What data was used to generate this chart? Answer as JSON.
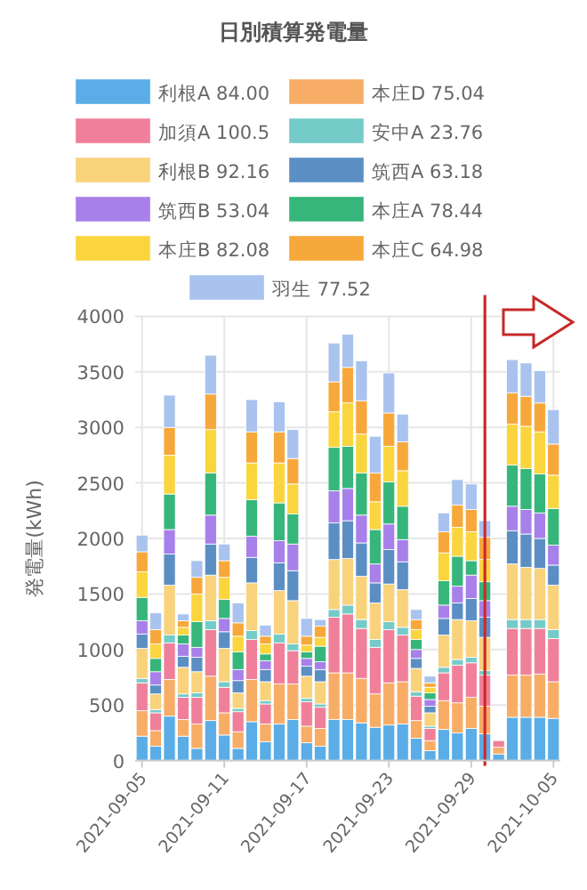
{
  "chart_data": {
    "type": "bar",
    "stacked": true,
    "title": "日別積算発電量",
    "ylabel": "発電量(kWh)",
    "x": [
      "2021-09-05",
      "2021-09-06",
      "2021-09-07",
      "2021-09-08",
      "2021-09-09",
      "2021-09-10",
      "2021-09-11",
      "2021-09-12",
      "2021-09-13",
      "2021-09-14",
      "2021-09-15",
      "2021-09-16",
      "2021-09-17",
      "2021-09-18",
      "2021-09-19",
      "2021-09-20",
      "2021-09-21",
      "2021-09-22",
      "2021-09-23",
      "2021-09-24",
      "2021-09-25",
      "2021-09-26",
      "2021-09-27",
      "2021-09-28",
      "2021-09-29",
      "2021-09-30",
      "2021-10-01",
      "2021-10-02",
      "2021-10-03",
      "2021-10-04",
      "2021-10-05"
    ],
    "xlim": [
      "2021-09-04T12:00",
      "2021-10-05T12:00"
    ],
    "xticks": [
      "2021-09-05",
      "2021-09-11",
      "2021-09-17",
      "2021-09-23",
      "2021-09-29",
      "2021-10-05"
    ],
    "ylim": [
      0,
      4000
    ],
    "yticks": [
      0,
      500,
      1000,
      1500,
      2000,
      2500,
      3000,
      3500,
      4000
    ],
    "grid": true,
    "legend": "top",
    "ref_lines": [
      {
        "axis": "x",
        "value": "2021-09-30",
        "color": "#cc2a2a"
      }
    ],
    "series": [
      {
        "name": "利根A 84.00",
        "color": "#5aade6",
        "values": [
          220,
          130,
          400,
          220,
          110,
          360,
          230,
          110,
          350,
          170,
          330,
          370,
          160,
          130,
          370,
          370,
          340,
          300,
          320,
          330,
          200,
          90,
          280,
          250,
          290,
          240,
          60,
          390,
          390,
          390,
          380
        ]
      },
      {
        "name": "本庄D 75.04",
        "color": "#f8ad66",
        "values": [
          230,
          140,
          330,
          150,
          220,
          400,
          200,
          150,
          380,
          160,
          360,
          320,
          150,
          160,
          420,
          420,
          400,
          300,
          380,
          380,
          160,
          90,
          260,
          270,
          280,
          250,
          60,
          380,
          380,
          390,
          330
        ]
      },
      {
        "name": "加須A 100.5",
        "color": "#f0809a",
        "values": [
          250,
          160,
          330,
          200,
          240,
          420,
          230,
          180,
          360,
          180,
          370,
          300,
          220,
          190,
          500,
          530,
          450,
          420,
          480,
          420,
          220,
          110,
          250,
          340,
          310,
          280,
          60,
          420,
          420,
          410,
          390
        ]
      },
      {
        "name": "安中A 23.76",
        "color": "#74cbc8",
        "values": [
          40,
          30,
          70,
          30,
          40,
          80,
          50,
          30,
          80,
          30,
          80,
          60,
          30,
          30,
          70,
          80,
          80,
          70,
          70,
          70,
          40,
          20,
          50,
          50,
          50,
          40,
          null,
          80,
          80,
          80,
          80
        ]
      },
      {
        "name": "利根B 92.16",
        "color": "#f9d27c",
        "values": [
          270,
          140,
          450,
          240,
          190,
          410,
          300,
          140,
          430,
          170,
          390,
          390,
          200,
          200,
          450,
          420,
          390,
          330,
          340,
          340,
          210,
          120,
          290,
          360,
          330,
          300,
          null,
          500,
          470,
          460,
          400
        ]
      },
      {
        "name": "筑西A 63.18",
        "color": "#5b8fc4",
        "values": [
          130,
          80,
          280,
          100,
          130,
          280,
          150,
          110,
          230,
          110,
          250,
          270,
          90,
          110,
          330,
          340,
          300,
          180,
          310,
          250,
          90,
          60,
          150,
          150,
          200,
          180,
          null,
          300,
          300,
          270,
          180
        ]
      },
      {
        "name": "筑西B 53.04",
        "color": "#a880ea",
        "values": [
          120,
          120,
          220,
          110,
          90,
          260,
          120,
          100,
          190,
          80,
          200,
          240,
          70,
          70,
          290,
          290,
          250,
          170,
          230,
          200,
          80,
          60,
          120,
          150,
          210,
          150,
          null,
          220,
          220,
          230,
          180
        ]
      },
      {
        "name": "本庄A 78.44",
        "color": "#36b67a",
        "values": [
          210,
          120,
          320,
          80,
          230,
          380,
          170,
          160,
          330,
          60,
          340,
          270,
          60,
          140,
          390,
          380,
          380,
          310,
          380,
          300,
          90,
          60,
          220,
          270,
          130,
          170,
          null,
          370,
          370,
          350,
          330
        ]
      },
      {
        "name": "本庄B 82.08",
        "color": "#fad53e",
        "values": [
          230,
          130,
          350,
          70,
          250,
          390,
          200,
          140,
          330,
          90,
          360,
          270,
          60,
          80,
          320,
          390,
          350,
          250,
          320,
          320,
          90,
          50,
          250,
          260,
          260,
          200,
          null,
          370,
          380,
          380,
          300
        ]
      },
      {
        "name": "本庄C 64.98",
        "color": "#f7a83a",
        "values": [
          180,
          130,
          250,
          60,
          150,
          320,
          150,
          120,
          280,
          70,
          280,
          230,
          80,
          100,
          270,
          320,
          300,
          260,
          300,
          260,
          90,
          40,
          190,
          200,
          200,
          200,
          null,
          280,
          270,
          260,
          280
        ]
      },
      {
        "name": "羽生 77.52",
        "color": "#a9c3ee",
        "values": [
          150,
          150,
          290,
          60,
          150,
          350,
          150,
          180,
          290,
          100,
          270,
          260,
          160,
          60,
          350,
          300,
          360,
          330,
          360,
          250,
          90,
          60,
          170,
          230,
          230,
          150,
          null,
          300,
          300,
          290,
          310
        ]
      }
    ]
  }
}
